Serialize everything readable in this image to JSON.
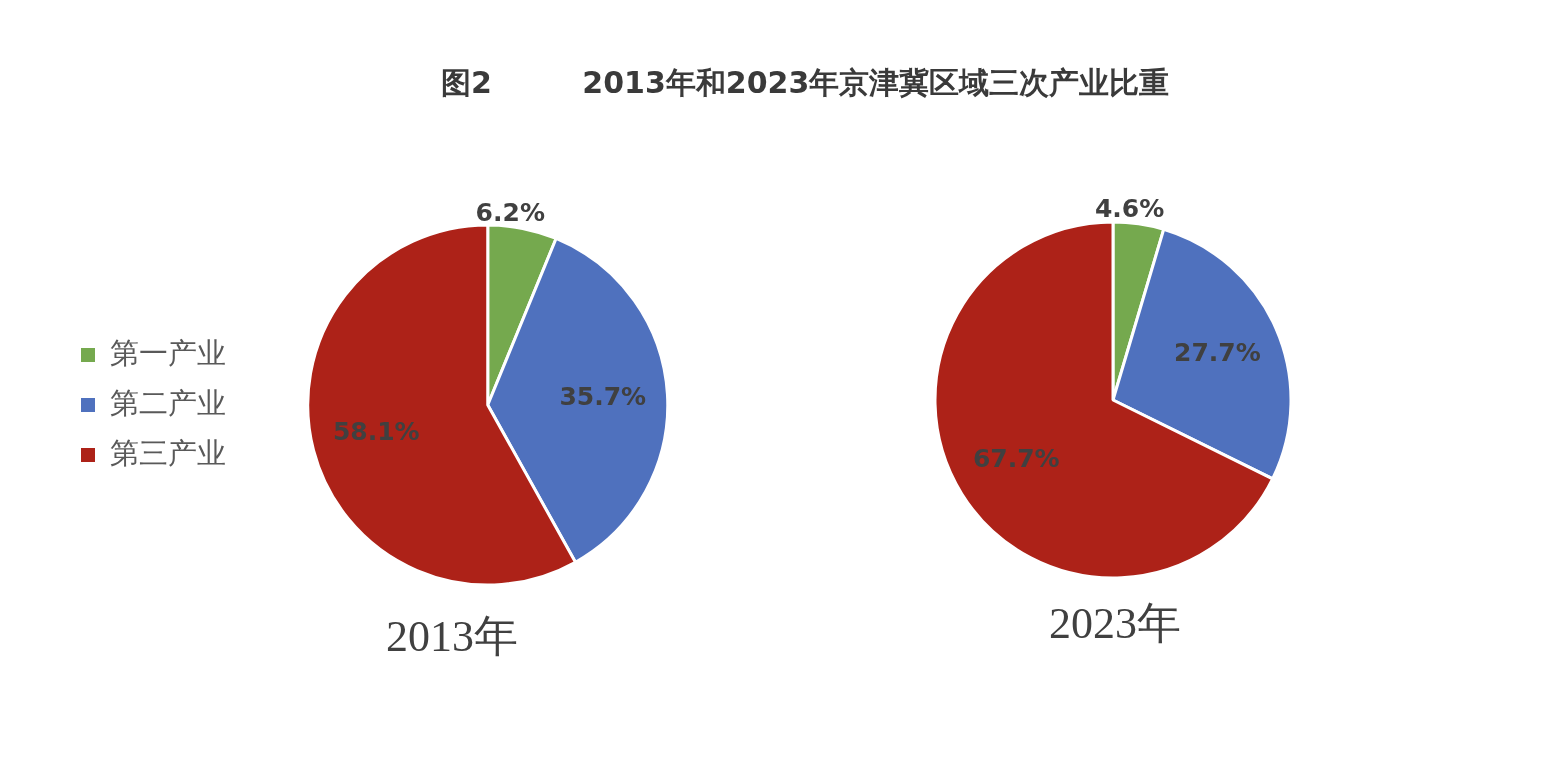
{
  "chart_data": [
    {
      "type": "pie",
      "title": "图2 2013年和2023年京津冀区域三次产业比重",
      "xlabel": "2013年",
      "categories": [
        "第一产业",
        "第二产业",
        "第三产业"
      ],
      "values": [
        6.2,
        35.7,
        58.1
      ],
      "colors": [
        "#75a94e",
        "#4f71be",
        "#ad2218"
      ],
      "value_labels": [
        "6.2%",
        "35.7%",
        "58.1%"
      ],
      "legend": "left"
    },
    {
      "type": "pie",
      "xlabel": "2023年",
      "categories": [
        null,
        null,
        null
      ],
      "values": [
        4.6,
        27.7,
        67.7
      ],
      "colors": [
        "#75a94e",
        "#4f71be",
        "#ad2218"
      ],
      "value_labels": [
        "4.6%",
        "27.7%",
        "67.7%"
      ]
    }
  ]
}
